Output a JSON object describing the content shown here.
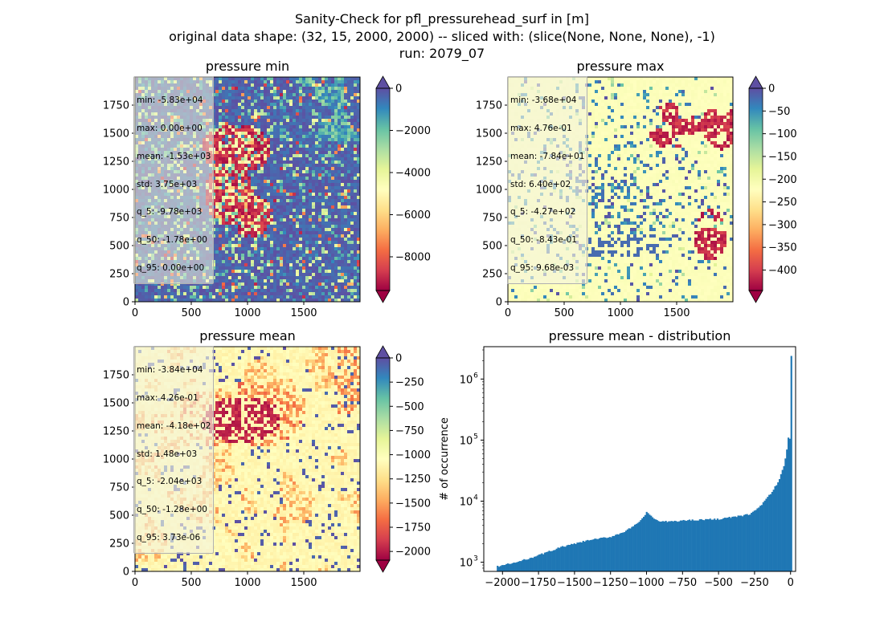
{
  "figure": {
    "title_lines": [
      "Sanity-Check for pfl_pressurehead_surf in [m]",
      "original data shape: (32, 15, 2000, 2000) -- sliced with: (slice(None, None, None), -1)",
      "run: 2079_07"
    ]
  },
  "colormap": "Spectral",
  "chart_data": [
    {
      "type": "heatmap",
      "title": "pressure min",
      "xlim": [
        0,
        2000
      ],
      "ylim": [
        0,
        2000
      ],
      "x_ticks": [
        "0",
        "500",
        "1000",
        "1500"
      ],
      "y_ticks": [
        "0",
        "250",
        "500",
        "750",
        "1000",
        "1250",
        "1500",
        "1750"
      ],
      "colorbar": {
        "min": -9600,
        "max": 0,
        "ticks": [
          "0",
          "−2000",
          "−4000",
          "−6000",
          "−8000"
        ],
        "tick_values": [
          0,
          -2000,
          -4000,
          -6000,
          -8000
        ],
        "extend_colors": {
          "max": "#5e4fa2",
          "min": "#9e0142"
        }
      },
      "stats": {
        "min": "-5.83e+04",
        "max": "0.00e+00",
        "mean": "-1.53e+03",
        "std": "3.75e+03",
        "q_5": "-9.78e+03",
        "q_50": "-1.78e+00",
        "q_95": "0.00e+00"
      }
    },
    {
      "type": "heatmap",
      "title": "pressure max",
      "xlim": [
        0,
        2000
      ],
      "ylim": [
        0,
        2000
      ],
      "x_ticks": [
        "0",
        "500",
        "1000",
        "1500"
      ],
      "y_ticks": [
        "0",
        "250",
        "500",
        "750",
        "1000",
        "1250",
        "1500",
        "1750"
      ],
      "colorbar": {
        "min": -445,
        "max": 0,
        "ticks": [
          "0",
          "−50",
          "−100",
          "−150",
          "−200",
          "−250",
          "−300",
          "−350",
          "−400"
        ],
        "tick_values": [
          0,
          -50,
          -100,
          -150,
          -200,
          -250,
          -300,
          -350,
          -400
        ],
        "extend_colors": {
          "max": "#5e4fa2",
          "min": "#9e0142"
        }
      },
      "stats": {
        "min": "-3.68e+04",
        "max": "4.76e-01",
        "mean": "-7.84e+01",
        "std": "6.40e+02",
        "q_5": "-4.27e+02",
        "q_50": "-8.43e-01",
        "q_95": "9.68e-03"
      }
    },
    {
      "type": "heatmap",
      "title": "pressure mean",
      "xlim": [
        0,
        2000
      ],
      "ylim": [
        0,
        2000
      ],
      "x_ticks": [
        "0",
        "500",
        "1000",
        "1500"
      ],
      "y_ticks": [
        "0",
        "250",
        "500",
        "750",
        "1000",
        "1250",
        "1500",
        "1750"
      ],
      "colorbar": {
        "min": -2090,
        "max": 0,
        "ticks": [
          "0",
          "−250",
          "−500",
          "−750",
          "−1000",
          "−1250",
          "−1500",
          "−1750",
          "−2000"
        ],
        "tick_values": [
          0,
          -250,
          -500,
          -750,
          -1000,
          -1250,
          -1500,
          -1750,
          -2000
        ],
        "extend_colors": {
          "max": "#5e4fa2",
          "min": "#9e0142"
        }
      },
      "stats": {
        "min": "-3.84e+04",
        "max": "4.26e-01",
        "mean": "-4.18e+02",
        "std": "1.48e+03",
        "q_5": "-2.04e+03",
        "q_50": "-1.28e+00",
        "q_95": "3.73e-06"
      }
    },
    {
      "type": "bar",
      "title": "pressure mean - distribution",
      "xlabel": "",
      "ylabel": "# of occurrence",
      "y_scale": "log",
      "bar_color": "#1f77b4",
      "xlim": [
        -2130,
        35
      ],
      "ylim_log10": [
        2.85,
        6.53
      ],
      "x_ticks": [
        "−2000",
        "−1750",
        "−1500",
        "−1250",
        "−1000",
        "−750",
        "−500",
        "−250",
        "0"
      ],
      "x_tick_values": [
        -2000,
        -1750,
        -1500,
        -1250,
        -1000,
        -750,
        -500,
        -250,
        0
      ],
      "y_ticks": [
        {
          "base": "10",
          "exp": "3",
          "value": 1000
        },
        {
          "base": "10",
          "exp": "4",
          "value": 10000
        },
        {
          "base": "10",
          "exp": "5",
          "value": 100000
        },
        {
          "base": "10",
          "exp": "6",
          "value": 1000000
        }
      ],
      "bins_edges": [
        -2040,
        10
      ],
      "profile_x": [
        -2040,
        -1900,
        -1750,
        -1600,
        -1500,
        -1400,
        -1250,
        -1150,
        -1060,
        -1020,
        -1000,
        -970,
        -940,
        -900,
        -800,
        -700,
        -600,
        -500,
        -400,
        -330,
        -280,
        -230,
        -180,
        -130,
        -80,
        -50,
        -30,
        -20,
        -12,
        -8,
        -5,
        -3,
        -1
      ],
      "profile_y": [
        850,
        1000,
        1300,
        1750,
        2000,
        2300,
        2600,
        3200,
        4300,
        5600,
        6500,
        5800,
        5000,
        4600,
        4700,
        4900,
        5000,
        5100,
        5500,
        5800,
        6200,
        7500,
        10000,
        14000,
        22000,
        35000,
        60000,
        90000,
        130000,
        150000,
        100000,
        130000,
        2400000
      ]
    }
  ]
}
